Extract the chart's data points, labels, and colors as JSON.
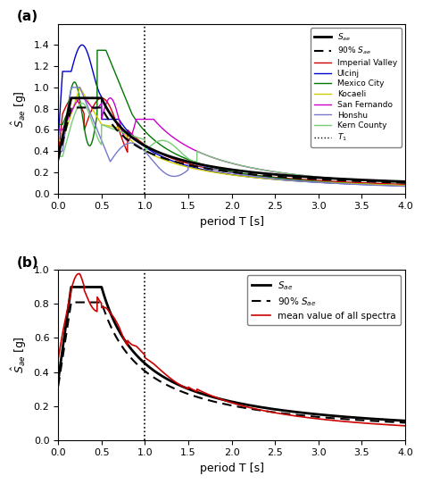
{
  "T1": 1.0,
  "xlim": [
    0,
    4.0
  ],
  "xticks": [
    0,
    0.5,
    1.0,
    1.5,
    2.0,
    2.5,
    3.0,
    3.5,
    4.0
  ],
  "panel_a": {
    "ylim": [
      0,
      1.6
    ],
    "yticks": [
      0,
      0.2,
      0.4,
      0.6,
      0.8,
      1.0,
      1.2,
      1.4
    ],
    "ylabel": "$\\hat{S}_{ae}$ [g]",
    "xlabel": "period T [s]",
    "label": "(a)"
  },
  "panel_b": {
    "ylim": [
      0,
      1.0
    ],
    "yticks": [
      0,
      0.2,
      0.4,
      0.6,
      0.8,
      1.0
    ],
    "ylabel": "$\\hat{S}_{ae}$ [g]",
    "xlabel": "period T [s]",
    "label": "(b)"
  },
  "colors": {
    "imperial_valley": "#cc0000",
    "ulcinj": "#0000cc",
    "mexico_city": "#007700",
    "kocaeli": "#cccc00",
    "san_fernando": "#cc00cc",
    "honshu": "#7777cc",
    "kern_county": "#77cc77",
    "target_black": "#000000",
    "mean_red": "#cc0000"
  }
}
